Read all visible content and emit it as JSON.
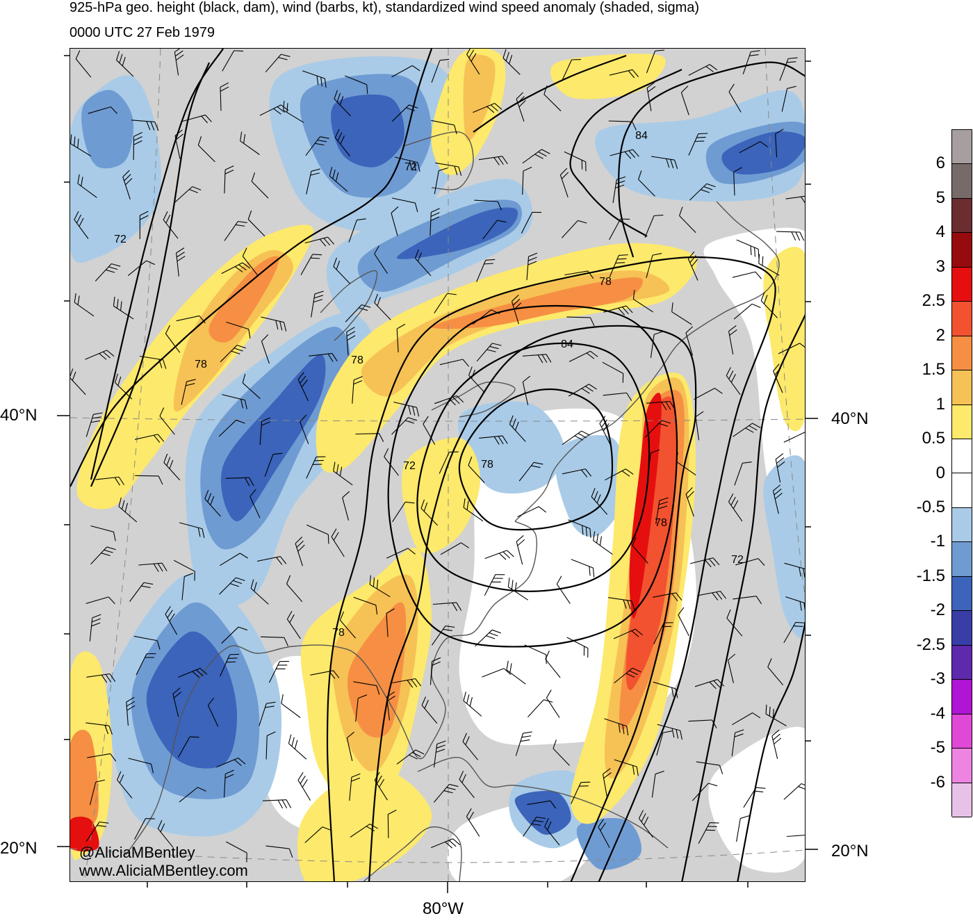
{
  "title": {
    "line1": "925-hPa geo. height (black, dam), wind (barbs, kt), standardized wind speed anomaly (shaded, sigma)",
    "line2": "0000 UTC 27 Feb 1979"
  },
  "axes": {
    "lat_labels": [
      {
        "text": "40°N",
        "side": "left"
      },
      {
        "text": "40°N",
        "side": "right"
      },
      {
        "text": "20°N",
        "side": "left"
      },
      {
        "text": "20°N",
        "side": "right"
      }
    ],
    "lon_labels": [
      {
        "text": "80°W"
      }
    ]
  },
  "contours": {
    "color": "#000000",
    "labels": [
      "84",
      "72",
      "78",
      "72",
      "78",
      "78",
      "72",
      "78",
      "84",
      "78",
      "72",
      "78"
    ]
  },
  "credits": {
    "handle": "@AliciaMBentley",
    "site": "www.AliciaMBentley.com"
  },
  "colorbar": {
    "labels": [
      "6",
      "5",
      "4",
      "3",
      "2.5",
      "2",
      "1.5",
      "1",
      "0.5",
      "0",
      "-0.5",
      "-1",
      "-1.5",
      "-2",
      "-2.5",
      "-3",
      "-4",
      "-5",
      "-6"
    ],
    "colors": [
      "#a79f9f",
      "#776b6a",
      "#6b2d30",
      "#970b0e",
      "#e60f0f",
      "#f2522f",
      "#f68f43",
      "#f6c155",
      "#fde96b",
      "#ffffff",
      "#ffffff",
      "#a9cbe7",
      "#6f9bd3",
      "#3b64ba",
      "#383ea6",
      "#5f29ad",
      "#b014d4",
      "#e048d7",
      "#ee84e2",
      "#e8c1e8"
    ]
  },
  "palette": {
    "land": "#d2d2d2",
    "neutral": "#ffffff",
    "neg1": "#a9cbe7",
    "neg2": "#6f9bd3",
    "neg3": "#3b64ba",
    "neg4": "#383ea6",
    "neg5": "#5f29ad",
    "pos1": "#fde96b",
    "pos2": "#f6c155",
    "pos3": "#f68f43",
    "pos4": "#f2522f",
    "pos5": "#e60f0f",
    "coast": "#555555"
  }
}
